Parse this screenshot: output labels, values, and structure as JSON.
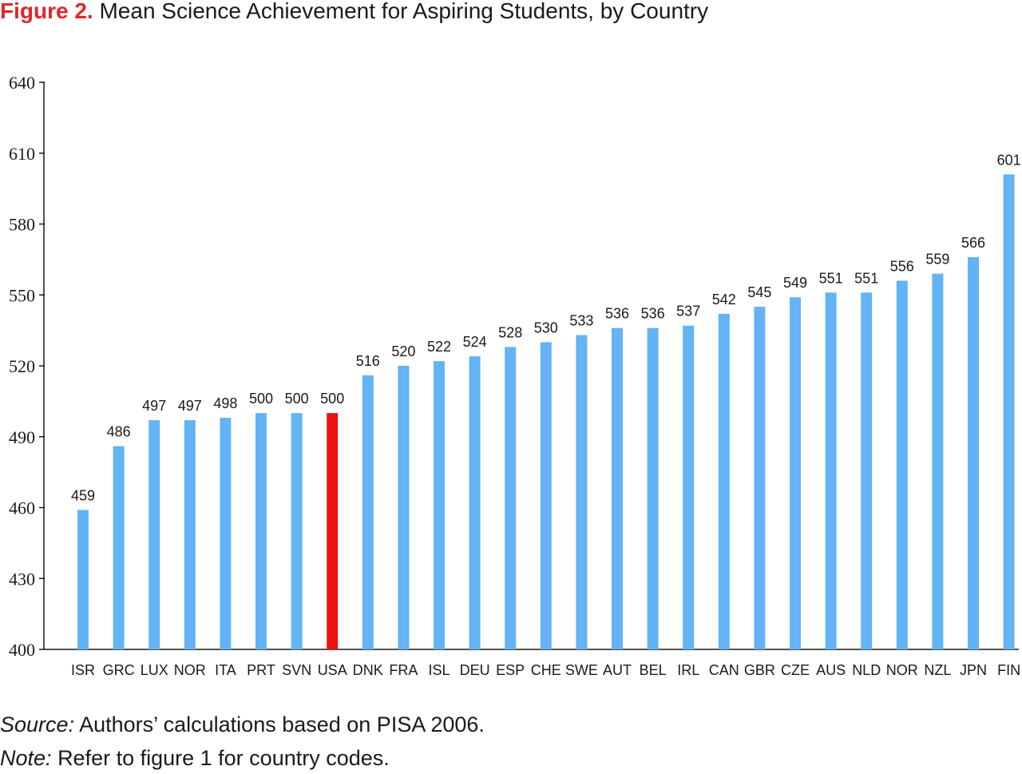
{
  "figure": {
    "label": "Figure 2.",
    "title": "Mean Science Achievement for Aspiring Students, by Country"
  },
  "source": {
    "label": "Source:",
    "text": "Authors’ calculations based on PISA 2006."
  },
  "note": {
    "label": "Note:",
    "text": "Refer to figure 1 for country codes."
  },
  "colors": {
    "bar": "#63b3f5",
    "highlight": "#ee1111",
    "title_accent": "#e1262a"
  },
  "chart_data": {
    "type": "bar",
    "title": "Mean Science Achievement for Aspiring Students, by Country",
    "xlabel": "",
    "ylabel": "",
    "ylim": [
      400,
      640
    ],
    "yticks": [
      400,
      430,
      460,
      490,
      520,
      550,
      580,
      610,
      640
    ],
    "grid": false,
    "highlight_category": "USA",
    "categories": [
      "ISR",
      "GRC",
      "LUX",
      "NOR",
      "ITA",
      "PRT",
      "SVN",
      "USA",
      "DNK",
      "FRA",
      "ISL",
      "DEU",
      "ESP",
      "CHE",
      "SWE",
      "AUT",
      "BEL",
      "IRL",
      "CAN",
      "GBR",
      "CZE",
      "AUS",
      "NLD",
      "NOR",
      "NZL",
      "JPN",
      "FIN"
    ],
    "values": [
      459,
      486,
      497,
      497,
      498,
      500,
      500,
      500,
      516,
      520,
      522,
      524,
      528,
      530,
      533,
      536,
      536,
      537,
      542,
      545,
      549,
      551,
      551,
      556,
      559,
      566,
      601
    ]
  }
}
